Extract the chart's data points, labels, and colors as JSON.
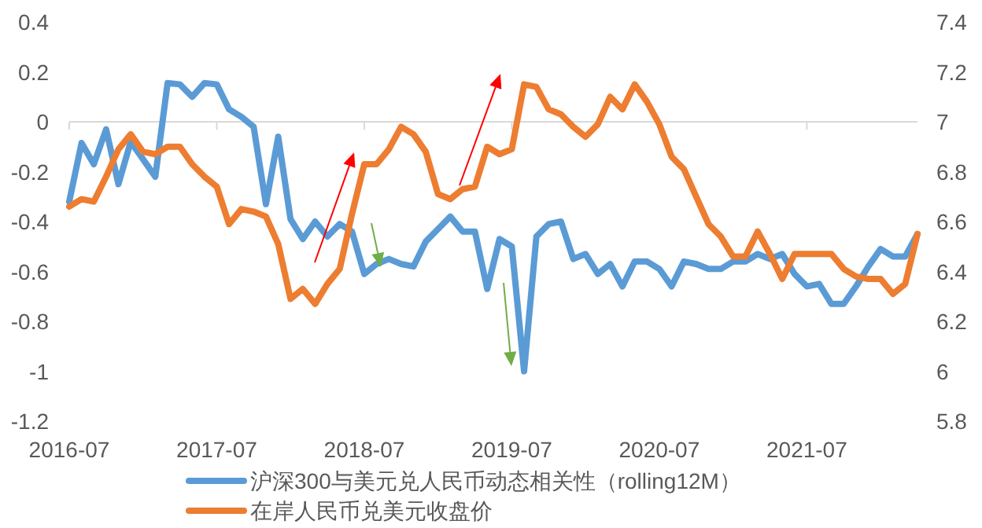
{
  "chart_data": {
    "type": "line",
    "categories": [
      "2016-07",
      null,
      null,
      null,
      null,
      null,
      null,
      null,
      null,
      null,
      null,
      null,
      "2017-07",
      null,
      null,
      null,
      null,
      null,
      null,
      null,
      null,
      null,
      null,
      null,
      "2018-07",
      null,
      null,
      null,
      null,
      null,
      null,
      null,
      null,
      null,
      null,
      null,
      "2019-07",
      null,
      null,
      null,
      null,
      null,
      null,
      null,
      null,
      null,
      null,
      null,
      "2020-07",
      null,
      null,
      null,
      null,
      null,
      null,
      null,
      null,
      null,
      null,
      null,
      "2021-07",
      null,
      null,
      null,
      null,
      null,
      null,
      null,
      null,
      null
    ],
    "series": [
      {
        "name": "沪深300与美元兑人民币动态相关性（rolling12M）",
        "color": "#5b9bd5",
        "values": [
          -0.32,
          -0.085,
          -0.17,
          -0.03,
          -0.25,
          -0.08,
          -0.15,
          -0.22,
          0.155,
          0.15,
          0.1,
          0.155,
          0.15,
          0.05,
          0.02,
          -0.02,
          -0.33,
          -0.06,
          -0.39,
          -0.47,
          -0.4,
          -0.46,
          -0.41,
          -0.44,
          -0.61,
          -0.57,
          -0.55,
          -0.57,
          -0.58,
          -0.48,
          -0.43,
          -0.38,
          -0.44,
          -0.44,
          -0.67,
          -0.47,
          -0.5,
          -1.0,
          -0.46,
          -0.41,
          -0.4,
          -0.55,
          -0.53,
          -0.61,
          -0.57,
          -0.66,
          -0.56,
          -0.56,
          -0.59,
          -0.66,
          -0.56,
          -0.57,
          -0.59,
          -0.59,
          -0.56,
          -0.56,
          -0.53,
          -0.55,
          -0.53,
          -0.61,
          -0.66,
          -0.65,
          -0.73,
          -0.73,
          -0.66,
          -0.58,
          -0.51,
          -0.54,
          -0.54,
          -0.45
        ]
      },
      {
        "name": "在岸人民币兑美元收盘价",
        "color": "#ed7d31",
        "axis": "y2",
        "values": [
          6.66,
          6.69,
          6.68,
          6.78,
          6.89,
          6.95,
          6.88,
          6.87,
          6.9,
          6.9,
          6.83,
          6.78,
          6.74,
          6.59,
          6.65,
          6.64,
          6.62,
          6.51,
          6.29,
          6.33,
          6.27,
          6.35,
          6.41,
          6.63,
          6.83,
          6.83,
          6.89,
          6.98,
          6.95,
          6.88,
          6.71,
          6.69,
          6.73,
          6.74,
          6.9,
          6.87,
          6.89,
          7.15,
          7.14,
          7.05,
          7.03,
          6.98,
          6.94,
          6.99,
          7.1,
          7.05,
          7.15,
          7.08,
          6.99,
          6.86,
          6.81,
          6.7,
          6.59,
          6.54,
          6.46,
          6.46,
          6.56,
          6.47,
          6.37,
          6.47,
          6.47,
          6.47,
          6.47,
          6.41,
          6.38,
          6.37,
          6.37,
          6.31,
          6.35,
          6.55
        ]
      }
    ],
    "ylim": [
      -1.2,
      0.4
    ],
    "yticks": [
      -1.2,
      -1,
      -0.8,
      -0.6,
      -0.4,
      -0.2,
      0,
      0.2,
      0.4
    ],
    "y2lim": [
      5.8,
      7.4
    ],
    "y2ticks": [
      5.8,
      6,
      6.2,
      6.4,
      6.6,
      6.8,
      7,
      7.2,
      7.4
    ],
    "legend": "bottom"
  }
}
